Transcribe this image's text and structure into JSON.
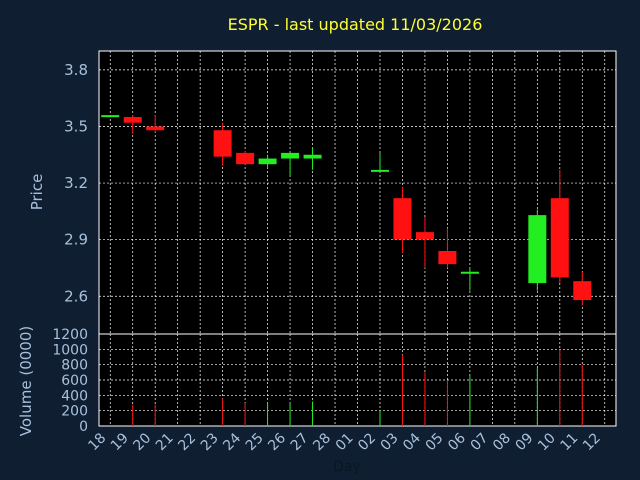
{
  "chart_data": {
    "type": "candlestick",
    "title": "ESPR - last updated 11/03/2026",
    "xlabel": "Day",
    "price_ylabel": "Price",
    "volume_ylabel": "Volume (0000)",
    "x_ticks": [
      "18",
      "19",
      "20",
      "21",
      "22",
      "23",
      "24",
      "25",
      "26",
      "27",
      "28",
      "01",
      "02",
      "03",
      "04",
      "05",
      "06",
      "07",
      "08",
      "09",
      "10",
      "11",
      "12"
    ],
    "price_ticks": [
      "3.8",
      "3.5",
      "3.2",
      "2.9",
      "2.6"
    ],
    "price_ylim": [
      2.4,
      3.9
    ],
    "volume_ticks": [
      "1200",
      "1000",
      "800",
      "600",
      "400",
      "200",
      "0"
    ],
    "volume_ylim": [
      0,
      1200
    ],
    "colors": {
      "up": "#22ee22",
      "down": "#ff1111",
      "grid": "#ffffff",
      "panel_border": "#ffffff",
      "background": "#0f1e30",
      "plot_bg": "#000000"
    },
    "candles": [
      {
        "day": "18",
        "open": 3.56,
        "high": 3.56,
        "low": 3.56,
        "close": 3.56,
        "volume": 0
      },
      {
        "day": "19",
        "open": 3.55,
        "high": 3.56,
        "low": 3.46,
        "close": 3.52,
        "volume": 280
      },
      {
        "day": "20",
        "open": 3.5,
        "high": 3.56,
        "low": 3.47,
        "close": 3.48,
        "volume": 280
      },
      {
        "day": "23",
        "open": 3.48,
        "high": 3.52,
        "low": 3.29,
        "close": 3.34,
        "volume": 360
      },
      {
        "day": "24",
        "open": 3.36,
        "high": 3.37,
        "low": 3.3,
        "close": 3.3,
        "volume": 300
      },
      {
        "day": "25",
        "open": 3.3,
        "high": 3.35,
        "low": 3.28,
        "close": 3.33,
        "volume": 300
      },
      {
        "day": "26",
        "open": 3.33,
        "high": 3.36,
        "low": 3.24,
        "close": 3.36,
        "volume": 300
      },
      {
        "day": "27",
        "open": 3.33,
        "high": 3.39,
        "low": 3.27,
        "close": 3.35,
        "volume": 320
      },
      {
        "day": "02",
        "open": 3.26,
        "high": 3.36,
        "low": 3.26,
        "close": 3.27,
        "volume": 210
      },
      {
        "day": "03",
        "open": 3.12,
        "high": 3.18,
        "low": 2.83,
        "close": 2.9,
        "volume": 930
      },
      {
        "day": "04",
        "open": 2.94,
        "high": 3.02,
        "low": 2.75,
        "close": 2.9,
        "volume": 700
      },
      {
        "day": "05",
        "open": 2.84,
        "high": 2.96,
        "low": 2.75,
        "close": 2.77,
        "volume": 590
      },
      {
        "day": "06",
        "open": 2.72,
        "high": 2.75,
        "low": 2.63,
        "close": 2.73,
        "volume": 650
      },
      {
        "day": "09",
        "open": 2.67,
        "high": 3.06,
        "low": 2.63,
        "close": 3.03,
        "volume": 760
      },
      {
        "day": "10",
        "open": 3.12,
        "high": 3.27,
        "low": 2.67,
        "close": 2.7,
        "volume": 1000
      },
      {
        "day": "11",
        "open": 2.68,
        "high": 2.73,
        "low": 2.55,
        "close": 2.58,
        "volume": 800
      }
    ]
  }
}
